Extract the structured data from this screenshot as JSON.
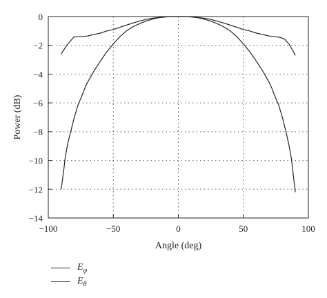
{
  "chart_data": {
    "type": "line",
    "xlabel": "Angle (deg)",
    "ylabel": "Power (dB)",
    "xlim": [
      -100,
      100
    ],
    "ylim": [
      -14,
      0
    ],
    "xticks": [
      -100,
      -50,
      0,
      50,
      100
    ],
    "yticks": [
      0,
      -2,
      -4,
      -6,
      -8,
      -10,
      -12,
      -14
    ],
    "xtick_labels": [
      "−100",
      "−50",
      "0",
      "50",
      "100"
    ],
    "ytick_labels": [
      "0",
      "−2",
      "−4",
      "−6",
      "−8",
      "−10",
      "−12",
      "−14"
    ],
    "grid": "dotted",
    "legend_position": "below",
    "series": [
      {
        "name": "E_φ",
        "x": [
          -90,
          -88,
          -85,
          -82,
          -80,
          -78,
          -75,
          -70,
          -65,
          -60,
          -55,
          -50,
          -45,
          -40,
          -35,
          -30,
          -25,
          -20,
          -15,
          -10,
          -5,
          0,
          5,
          10,
          15,
          20,
          25,
          30,
          35,
          40,
          45,
          50,
          55,
          60,
          65,
          70,
          75,
          78,
          80,
          82,
          85,
          88,
          90
        ],
        "y": [
          -2.6,
          -2.3,
          -1.9,
          -1.6,
          -1.4,
          -1.4,
          -1.4,
          -1.35,
          -1.25,
          -1.15,
          -1.0,
          -0.9,
          -0.75,
          -0.6,
          -0.45,
          -0.32,
          -0.2,
          -0.12,
          -0.06,
          -0.02,
          0.0,
          0.0,
          0.0,
          -0.02,
          -0.06,
          -0.12,
          -0.2,
          -0.32,
          -0.45,
          -0.6,
          -0.75,
          -0.9,
          -1.0,
          -1.15,
          -1.25,
          -1.35,
          -1.4,
          -1.45,
          -1.5,
          -1.6,
          -1.9,
          -2.35,
          -2.7
        ]
      },
      {
        "name": "E_θ",
        "x": [
          -90,
          -89,
          -88,
          -87,
          -85,
          -83,
          -80,
          -77,
          -75,
          -72,
          -70,
          -65,
          -60,
          -55,
          -50,
          -45,
          -40,
          -35,
          -30,
          -25,
          -20,
          -15,
          -10,
          -5,
          0,
          5,
          10,
          15,
          20,
          25,
          30,
          35,
          40,
          45,
          50,
          55,
          60,
          65,
          70,
          72,
          75,
          77,
          80,
          83,
          85,
          87,
          88,
          89,
          90
        ],
        "y": [
          -12.0,
          -11.3,
          -10.6,
          -9.8,
          -8.8,
          -8.1,
          -7.0,
          -6.1,
          -5.7,
          -5.0,
          -4.6,
          -3.8,
          -3.1,
          -2.45,
          -1.9,
          -1.4,
          -1.0,
          -0.72,
          -0.5,
          -0.32,
          -0.18,
          -0.08,
          -0.03,
          0.0,
          0.0,
          0.0,
          -0.03,
          -0.08,
          -0.18,
          -0.32,
          -0.5,
          -0.72,
          -1.0,
          -1.4,
          -1.9,
          -2.45,
          -3.1,
          -3.8,
          -4.6,
          -5.0,
          -5.7,
          -6.1,
          -7.0,
          -8.1,
          -8.9,
          -9.9,
          -10.7,
          -11.5,
          -12.2
        ]
      }
    ]
  },
  "legend": [
    {
      "symbol": "E",
      "subscript": "φ"
    },
    {
      "symbol": "E",
      "subscript": "θ"
    }
  ]
}
